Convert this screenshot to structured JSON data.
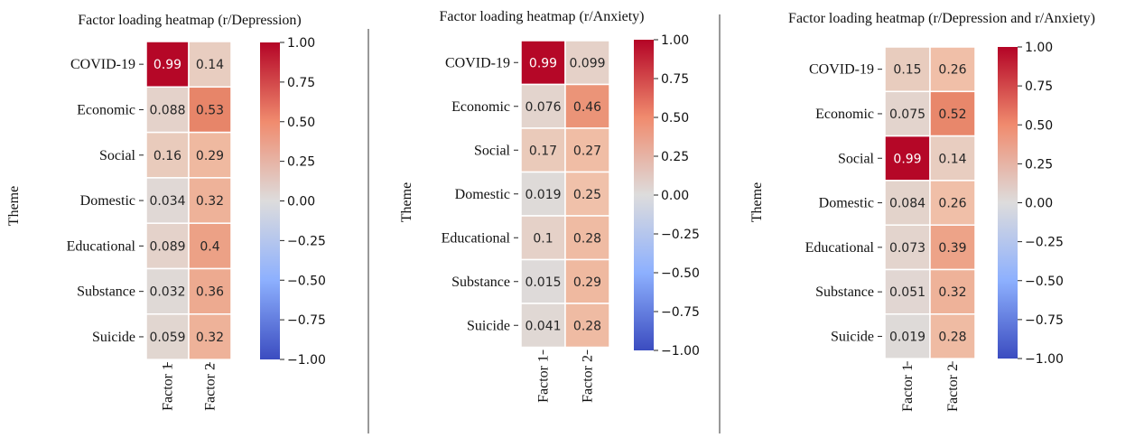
{
  "chart_data": [
    {
      "type": "heatmap",
      "title": "Factor loading heatmap (r/Depression)",
      "ylabel": "Theme",
      "rows": [
        "COVID-19",
        "Economic",
        "Social",
        "Domestic",
        "Educational",
        "Substance",
        "Suicide"
      ],
      "columns": [
        "Factor 1",
        "Factor 2"
      ],
      "values": [
        [
          0.99,
          0.14
        ],
        [
          0.088,
          0.53
        ],
        [
          0.16,
          0.29
        ],
        [
          0.034,
          0.32
        ],
        [
          0.089,
          0.4
        ],
        [
          0.032,
          0.36
        ],
        [
          0.059,
          0.32
        ]
      ],
      "labels": [
        [
          "0.99",
          "0.14"
        ],
        [
          "0.088",
          "0.53"
        ],
        [
          "0.16",
          "0.29"
        ],
        [
          "0.034",
          "0.32"
        ],
        [
          "0.089",
          "0.4"
        ],
        [
          "0.032",
          "0.36"
        ],
        [
          "0.059",
          "0.32"
        ]
      ],
      "colorbar": {
        "range": [
          -1,
          1
        ],
        "ticks": [
          "1.00",
          "0.75",
          "0.50",
          "0.25",
          "0.00",
          "−0.25",
          "−0.50",
          "−0.75",
          "−1.00"
        ],
        "colormap": "coolwarm"
      }
    },
    {
      "type": "heatmap",
      "title": "Factor loading heatmap (r/Anxiety)",
      "ylabel": "Theme",
      "rows": [
        "COVID-19",
        "Economic",
        "Social",
        "Domestic",
        "Educational",
        "Substance",
        "Suicide"
      ],
      "columns": [
        "Factor 1",
        "Factor 2"
      ],
      "values": [
        [
          0.99,
          0.099
        ],
        [
          0.076,
          0.46
        ],
        [
          0.17,
          0.27
        ],
        [
          0.019,
          0.25
        ],
        [
          0.1,
          0.28
        ],
        [
          0.015,
          0.29
        ],
        [
          0.041,
          0.28
        ]
      ],
      "labels": [
        [
          "0.99",
          "0.099"
        ],
        [
          "0.076",
          "0.46"
        ],
        [
          "0.17",
          "0.27"
        ],
        [
          "0.019",
          "0.25"
        ],
        [
          "0.1",
          "0.28"
        ],
        [
          "0.015",
          "0.29"
        ],
        [
          "0.041",
          "0.28"
        ]
      ],
      "colorbar": {
        "range": [
          -1,
          1
        ],
        "ticks": [
          "1.00",
          "0.75",
          "0.50",
          "0.25",
          "0.00",
          "−0.25",
          "−0.50",
          "−0.75",
          "−1.00"
        ],
        "colormap": "coolwarm"
      }
    },
    {
      "type": "heatmap",
      "title": "Factor loading heatmap (r/Depression and r/Anxiety)",
      "ylabel": "Theme",
      "rows": [
        "COVID-19",
        "Economic",
        "Social",
        "Domestic",
        "Educational",
        "Substance",
        "Suicide"
      ],
      "columns": [
        "Factor 1",
        "Factor 2"
      ],
      "values": [
        [
          0.15,
          0.26
        ],
        [
          0.075,
          0.52
        ],
        [
          0.99,
          0.14
        ],
        [
          0.084,
          0.26
        ],
        [
          0.073,
          0.39
        ],
        [
          0.051,
          0.32
        ],
        [
          0.019,
          0.28
        ]
      ],
      "labels": [
        [
          "0.15",
          "0.26"
        ],
        [
          "0.075",
          "0.52"
        ],
        [
          "0.99",
          "0.14"
        ],
        [
          "0.084",
          "0.26"
        ],
        [
          "0.073",
          "0.39"
        ],
        [
          "0.051",
          "0.32"
        ],
        [
          "0.019",
          "0.28"
        ]
      ],
      "colorbar": {
        "range": [
          -1,
          1
        ],
        "ticks": [
          "1.00",
          "0.75",
          "0.50",
          "0.25",
          "0.00",
          "−0.25",
          "−0.50",
          "−0.75",
          "−1.00"
        ],
        "colormap": "coolwarm"
      }
    }
  ]
}
